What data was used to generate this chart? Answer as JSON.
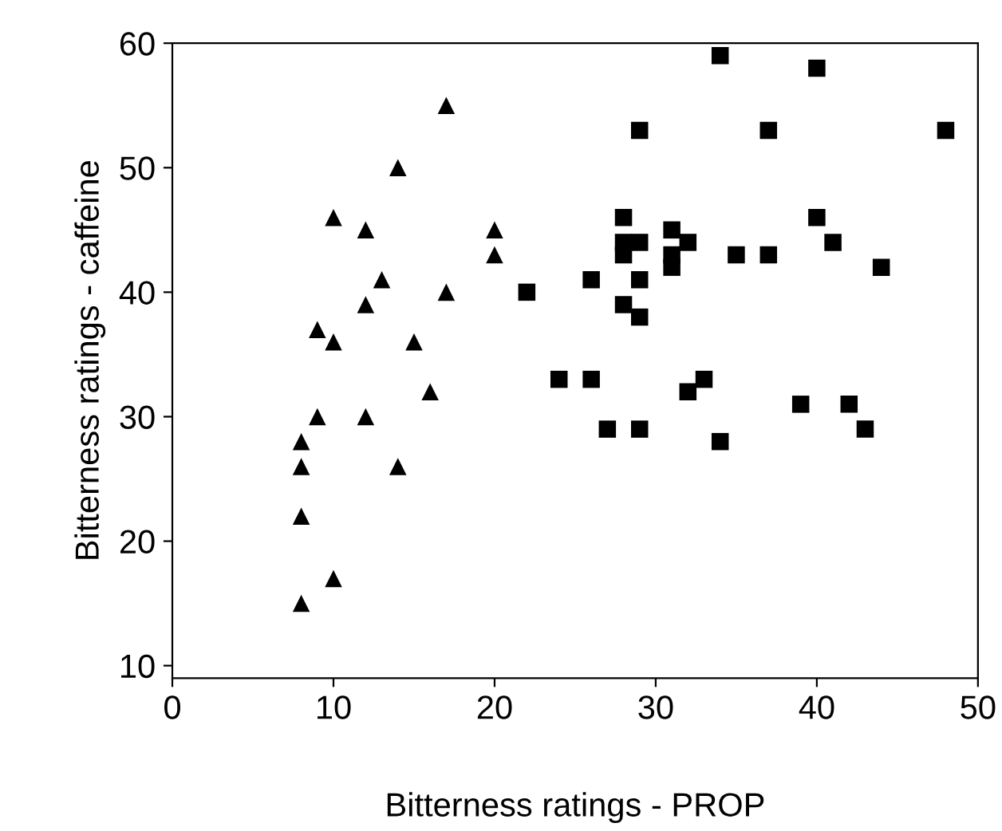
{
  "chart_data": {
    "type": "scatter",
    "xlabel": "Bitterness ratings - PROP",
    "ylabel": "Bitterness ratings - caffeine",
    "xlim": [
      0,
      50
    ],
    "ylim": [
      9,
      60
    ],
    "xticks": [
      0,
      10,
      20,
      30,
      40,
      50
    ],
    "yticks": [
      10,
      20,
      30,
      40,
      50,
      60
    ],
    "grid": false,
    "legend": false,
    "series": [
      {
        "color": "#000000",
        "marker": "triangle",
        "x": [
          17,
          14,
          10,
          12,
          20,
          20,
          13,
          17,
          12,
          9,
          10,
          15,
          16,
          9,
          12,
          8,
          8,
          14,
          8,
          10,
          8
        ],
        "values": [
          55,
          50,
          46,
          45,
          45,
          43,
          41,
          40,
          39,
          37,
          36,
          36,
          32,
          30,
          30,
          28,
          26,
          26,
          22,
          17,
          15
        ]
      },
      {
        "color": "#000000",
        "marker": "square",
        "x": [
          34,
          40,
          29,
          37,
          48,
          28,
          40,
          31,
          32,
          41,
          28,
          29,
          28,
          31,
          31,
          35,
          37,
          44,
          22,
          26,
          29,
          28,
          29,
          24,
          26,
          33,
          32,
          39,
          42,
          27,
          29,
          43,
          34
        ],
        "values": [
          59,
          58,
          53,
          53,
          53,
          46,
          46,
          45,
          44,
          44,
          44,
          44,
          43,
          43,
          42,
          43,
          43,
          42,
          40,
          41,
          41,
          39,
          38,
          33,
          33,
          33,
          32,
          31,
          31,
          29,
          29,
          29,
          28
        ]
      }
    ]
  }
}
